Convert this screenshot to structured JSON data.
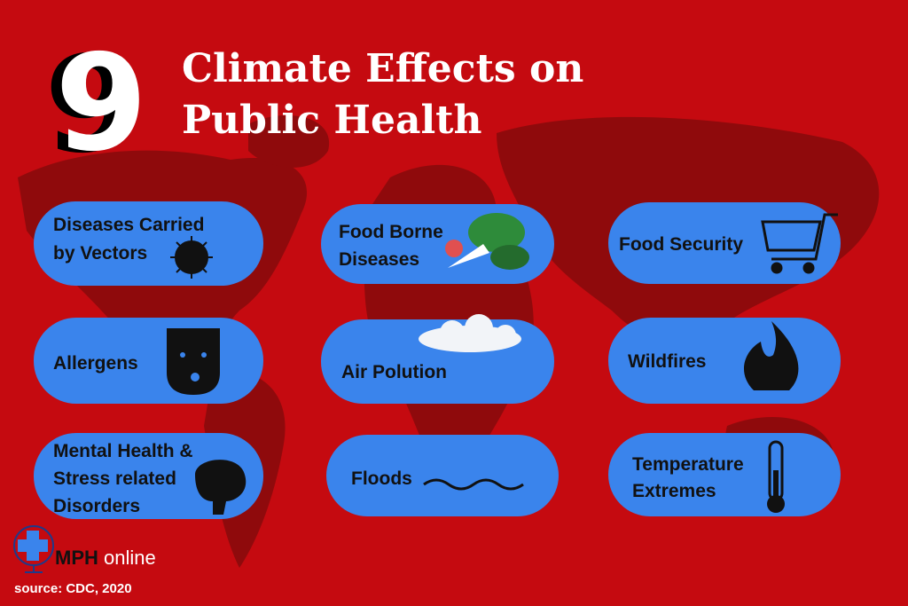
{
  "header": {
    "number": "9",
    "title_lines": [
      "Climate Effects on",
      "Public Health"
    ]
  },
  "items": [
    {
      "label_lines": [
        "Diseases Carried",
        "by Vectors"
      ]
    },
    {
      "label_lines": [
        "Food Borne",
        "Diseases"
      ]
    },
    {
      "label_lines": [
        "Food Security"
      ]
    },
    {
      "label_lines": [
        "Allergens"
      ]
    },
    {
      "label_lines": [
        "Air Polution"
      ]
    },
    {
      "label_lines": [
        "Wildfires"
      ]
    },
    {
      "label_lines": [
        "Mental Health &",
        "Stress related",
        "Disorders"
      ]
    },
    {
      "label_lines": [
        "Floods"
      ]
    },
    {
      "label_lines": [
        "Temperature",
        "Extremes"
      ]
    }
  ],
  "footer": {
    "logo_bold": "MPH",
    "logo_light": "online",
    "source": "source: CDC, 2020"
  }
}
